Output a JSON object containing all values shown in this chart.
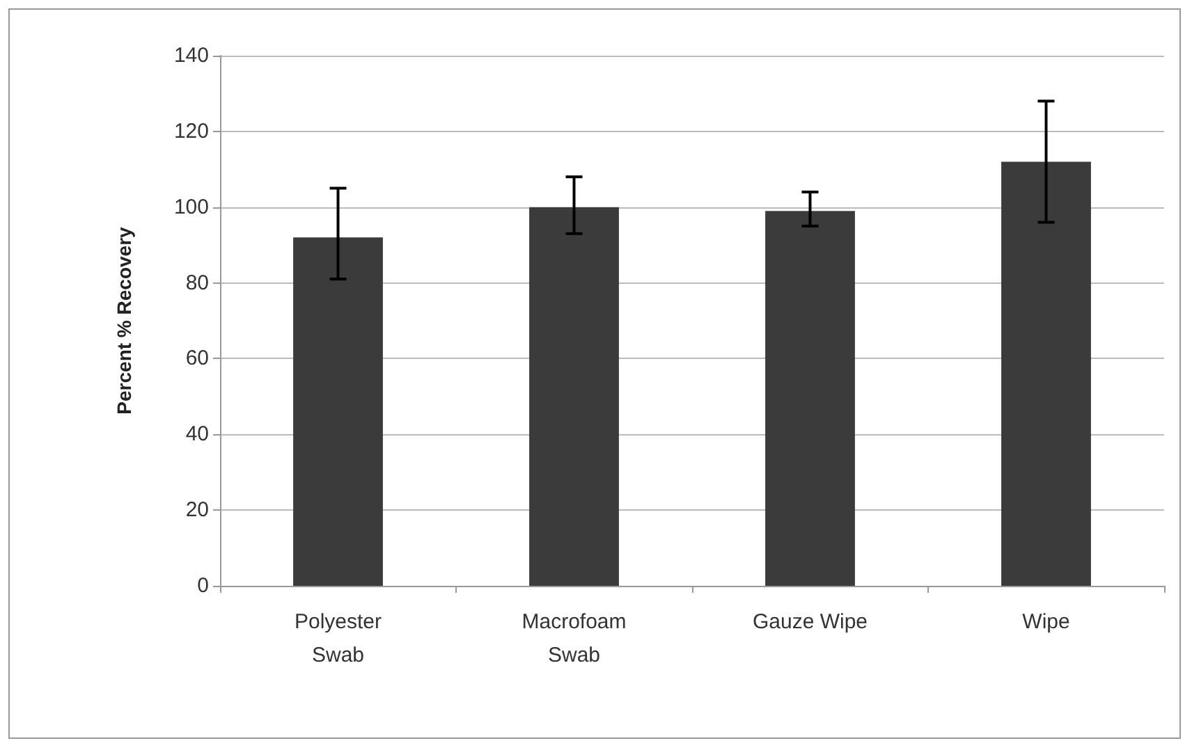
{
  "chart_data": {
    "type": "bar",
    "ylabel": "Percent % Recovery",
    "categories": [
      "Polyester Swab",
      "Macrofoam Swab",
      "Gauze Wipe",
      "Wipe"
    ],
    "values": [
      92,
      100,
      99,
      112
    ],
    "errors": [
      [
        81,
        105
      ],
      [
        93,
        108
      ],
      [
        95,
        104
      ],
      [
        96,
        128
      ]
    ],
    "color": "#3b3b3b",
    "ylim": [
      0,
      140
    ],
    "yticks": [
      0,
      20,
      40,
      60,
      80,
      100,
      120,
      140
    ],
    "grid": "y"
  }
}
